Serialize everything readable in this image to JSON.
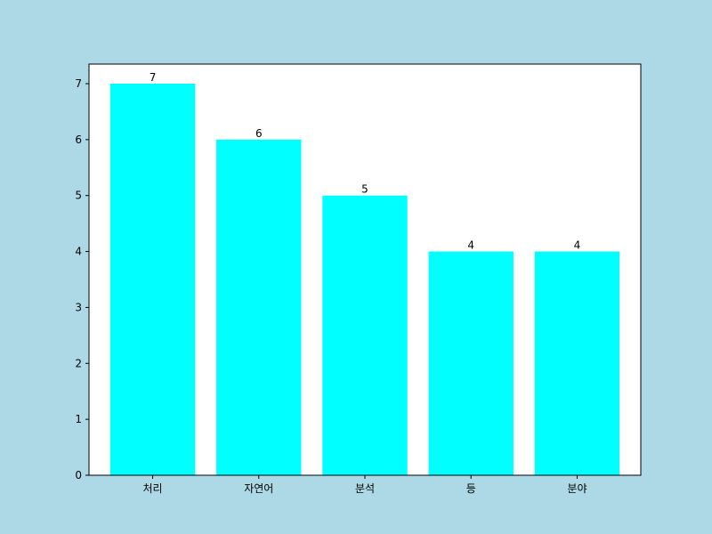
{
  "chart_data": {
    "type": "bar",
    "categories": [
      "처리",
      "자연어",
      "분석",
      "등",
      "분야"
    ],
    "values": [
      7,
      6,
      5,
      4,
      4
    ],
    "data_labels": [
      "7",
      "6",
      "5",
      "4",
      "4"
    ],
    "title": "",
    "xlabel": "",
    "ylabel": "",
    "ylim": [
      0,
      7.35
    ],
    "yticks": [
      0,
      1,
      2,
      3,
      4,
      5,
      6,
      7
    ],
    "ytick_labels": [
      "0",
      "1",
      "2",
      "3",
      "4",
      "5",
      "6",
      "7"
    ],
    "grid": false,
    "colors": {
      "bar": "#00ffff",
      "figure_background": "#add8e6",
      "plot_background": "#ffffff",
      "axis": "#000000"
    }
  }
}
